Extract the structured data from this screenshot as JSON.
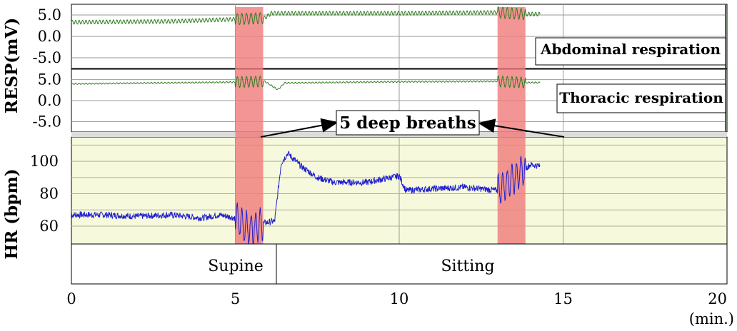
{
  "chart_data": {
    "type": "line",
    "ylabel_resp": "RESP(mV)",
    "ylabel_hr": "HR (bpm)",
    "xlabel": "(min.)",
    "x_ticks": [
      "0",
      "5",
      "10",
      "15",
      "20"
    ],
    "xlim": [
      0,
      20
    ],
    "x_gridlines": [
      5,
      10,
      15
    ],
    "panels": [
      {
        "name": "Abdominal respiration",
        "label": "Abdominal respiration",
        "ylim": [
          -7.5,
          7.5
        ],
        "y_ticks": [
          "5.0",
          "0.0",
          "-5.0"
        ],
        "y_tick_values": [
          5,
          0,
          -5
        ],
        "series": [
          {
            "x": [
              0,
              3,
              5.0,
              5.9,
              6.1,
              10,
              13.0,
              13.8,
              14.3
            ],
            "y": [
              3.3,
              3.5,
              4.0,
              4.3,
              5.4,
              5.4,
              5.6,
              5.2,
              5.2
            ],
            "color": "#2e7d1e"
          }
        ]
      },
      {
        "name": "Thoracic respiration",
        "label": "Thoracic respiration",
        "ylim": [
          -7.5,
          7.5
        ],
        "y_ticks": [
          "5.0",
          "0.0",
          "-5.0"
        ],
        "y_tick_values": [
          5,
          0,
          -5
        ],
        "series": [
          {
            "x": [
              0,
              5.0,
              5.9,
              6.3,
              6.5,
              10,
              13.0,
              13.8,
              14.3
            ],
            "y": [
              4.0,
              4.4,
              4.6,
              2.6,
              4.2,
              4.5,
              4.6,
              4.3,
              4.3
            ],
            "color": "#2e7d1e"
          }
        ]
      },
      {
        "name": "HR",
        "ylim": [
          49,
          115
        ],
        "y_ticks": [
          "100",
          "80",
          "60"
        ],
        "y_tick_values": [
          100,
          80,
          60
        ],
        "y_gridlines": [
          110,
          100,
          90,
          80,
          70,
          60
        ],
        "background": "#f7f9dc",
        "series": [
          {
            "x": [
              0,
              1,
              2,
              3,
              3.5,
              4,
              4.5,
              5.0,
              5.4,
              5.9,
              6.2,
              6.4,
              6.6,
              7,
              7.5,
              8,
              9,
              10,
              10.2,
              11,
              12,
              13,
              13.5,
              14,
              14.3
            ],
            "y": [
              67,
              67,
              66,
              67,
              66,
              65,
              67,
              65,
              58,
              62,
              63,
              99,
              105,
              97,
              90,
              87,
              87,
              91,
              82,
              83,
              84,
              82,
              90,
              98,
              97
            ],
            "color": "#1f1fd0"
          }
        ]
      }
    ],
    "highlight_color": "#f07b7b",
    "highlights": [
      {
        "x_start": 5.0,
        "x_end": 5.85
      },
      {
        "x_start": 13.0,
        "x_end": 13.85
      }
    ],
    "callout": "5 deep breaths",
    "postures": [
      {
        "label": "Supine",
        "x_start": 0,
        "x_end": 6.4
      },
      {
        "label": "Sitting",
        "x_start": 6.4,
        "x_end": 20
      }
    ]
  }
}
